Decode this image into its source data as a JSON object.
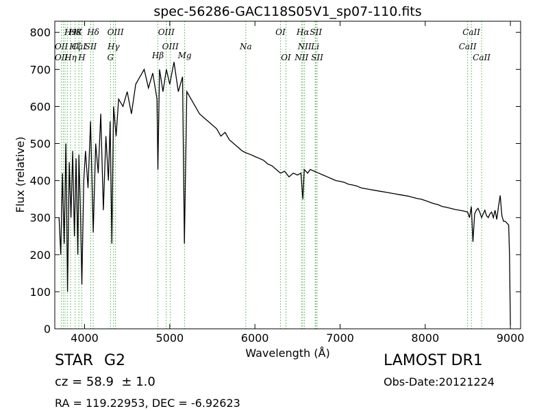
{
  "chart_data": {
    "type": "line",
    "title": "spec-56286-GAC118S05V1_sp07-110.fits",
    "xlabel": "Wavelength (Å)",
    "ylabel": "Flux (relative)",
    "xlim": [
      3650,
      9120
    ],
    "ylim": [
      0,
      830
    ],
    "xticks": [
      4000,
      5000,
      6000,
      7000,
      8000,
      9000
    ],
    "yticks": [
      0,
      100,
      200,
      300,
      400,
      500,
      600,
      700,
      800
    ],
    "xtick_labels": [
      "4000",
      "5000",
      "6000",
      "7000",
      "8000",
      "9000"
    ],
    "ytick_labels": [
      "0",
      "100",
      "200",
      "300",
      "400",
      "500",
      "600",
      "700",
      "800"
    ],
    "grid": false,
    "series": [
      {
        "color": "#000000",
        "x": [
          3700,
          3720,
          3740,
          3760,
          3780,
          3800,
          3820,
          3840,
          3860,
          3880,
          3900,
          3920,
          3933,
          3950,
          3968,
          3990,
          4010,
          4040,
          4070,
          4101,
          4130,
          4160,
          4190,
          4220,
          4250,
          4280,
          4300,
          4320,
          4340,
          4370,
          4400,
          4450,
          4500,
          4550,
          4600,
          4650,
          4700,
          4750,
          4800,
          4850,
          4861,
          4880,
          4920,
          4960,
          5000,
          5050,
          5100,
          5150,
          5172,
          5200,
          5250,
          5300,
          5350,
          5400,
          5450,
          5500,
          5550,
          5600,
          5650,
          5700,
          5750,
          5800,
          5850,
          5893,
          5950,
          6000,
          6050,
          6100,
          6150,
          6200,
          6250,
          6300,
          6350,
          6400,
          6450,
          6500,
          6540,
          6563,
          6580,
          6620,
          6650,
          6700,
          6750,
          6800,
          6850,
          6900,
          6950,
          7000,
          7050,
          7100,
          7150,
          7200,
          7250,
          7300,
          7350,
          7400,
          7450,
          7500,
          7550,
          7600,
          7650,
          7700,
          7750,
          7800,
          7850,
          7900,
          7950,
          8000,
          8050,
          8100,
          8150,
          8200,
          8250,
          8300,
          8350,
          8400,
          8450,
          8498,
          8520,
          8542,
          8560,
          8580,
          8600,
          8620,
          8640,
          8662,
          8680,
          8700,
          8720,
          8740,
          8760,
          8780,
          8800,
          8820,
          8840,
          8860,
          8880,
          8900,
          8920,
          8940,
          8960,
          8980,
          8990,
          9000
        ],
        "values": [
          300,
          200,
          420,
          230,
          500,
          100,
          450,
          300,
          480,
          250,
          460,
          200,
          470,
          330,
          120,
          400,
          480,
          380,
          560,
          260,
          500,
          420,
          580,
          320,
          520,
          400,
          560,
          230,
          600,
          520,
          620,
          600,
          640,
          580,
          660,
          680,
          700,
          650,
          690,
          620,
          430,
          700,
          640,
          700,
          660,
          720,
          640,
          680,
          230,
          640,
          620,
          600,
          580,
          570,
          560,
          550,
          540,
          520,
          530,
          510,
          500,
          490,
          480,
          475,
          470,
          465,
          460,
          455,
          445,
          440,
          430,
          420,
          425,
          410,
          420,
          415,
          420,
          350,
          430,
          420,
          430,
          425,
          420,
          415,
          410,
          405,
          400,
          398,
          395,
          390,
          388,
          385,
          380,
          378,
          376,
          374,
          372,
          370,
          368,
          366,
          364,
          362,
          360,
          358,
          355,
          352,
          350,
          346,
          342,
          338,
          335,
          330,
          328,
          325,
          322,
          320,
          318,
          315,
          300,
          330,
          235,
          310,
          320,
          325,
          315,
          300,
          310,
          320,
          305,
          300,
          310,
          315,
          300,
          320,
          295,
          330,
          360,
          305,
          290,
          290,
          285,
          280,
          200,
          10
        ]
      }
    ],
    "annotations": [
      {
        "label": "H9",
        "x": 3835,
        "y_label": 800
      },
      {
        "label": "H8",
        "x": 3889,
        "y_label": 800
      },
      {
        "label": "K",
        "x": 3933,
        "y_label": 800
      },
      {
        "label": "Hδ",
        "x": 4101,
        "y_label": 800
      },
      {
        "label": "OIII",
        "x": 4363,
        "y_label": 800
      },
      {
        "label": "OIII",
        "x": 4959,
        "y_label": 800
      },
      {
        "label": "OI",
        "x": 6300,
        "y_label": 800
      },
      {
        "label": "Hα",
        "x": 6563,
        "y_label": 800
      },
      {
        "label": "SII",
        "x": 6716,
        "y_label": 800
      },
      {
        "label": "CaII",
        "x": 8542,
        "y_label": 800
      },
      {
        "label": "OII",
        "x": 3727,
        "y_label": 762
      },
      {
        "label": "Hζ",
        "x": 3889,
        "y_label": 762
      },
      {
        "label": "CaI",
        "x": 3934,
        "y_label": 762
      },
      {
        "label": "SII",
        "x": 4072,
        "y_label": 762
      },
      {
        "label": "Hγ",
        "x": 4340,
        "y_label": 762
      },
      {
        "label": "OIII",
        "x": 5007,
        "y_label": 762
      },
      {
        "label": "NII",
        "x": 6583,
        "y_label": 762
      },
      {
        "label": "Li",
        "x": 6708,
        "y_label": 762
      },
      {
        "label": "CaII",
        "x": 8498,
        "y_label": 762
      },
      {
        "label": "Na",
        "x": 5893,
        "y_label": 762
      },
      {
        "label": "OII",
        "x": 3727,
        "y_label": 732
      },
      {
        "label": "Hη",
        "x": 3835,
        "y_label": 732
      },
      {
        "label": "H",
        "x": 3968,
        "y_label": 732
      },
      {
        "label": "G",
        "x": 4304,
        "y_label": 732
      },
      {
        "label": "Hβ",
        "x": 4861,
        "y_label": 738
      },
      {
        "label": "Mg",
        "x": 5175,
        "y_label": 738
      },
      {
        "label": "OI",
        "x": 6364,
        "y_label": 732
      },
      {
        "label": "NII",
        "x": 6548,
        "y_label": 732
      },
      {
        "label": "SII",
        "x": 6731,
        "y_label": 732
      },
      {
        "label": "CaII",
        "x": 8662,
        "y_label": 732
      }
    ],
    "line_markers": [
      3727,
      3750,
      3770,
      3797,
      3835,
      3889,
      3933,
      3968,
      4072,
      4101,
      4304,
      4340,
      4363,
      4861,
      4959,
      5007,
      5175,
      5893,
      6300,
      6364,
      6548,
      6563,
      6583,
      6708,
      6716,
      6731,
      8498,
      8542,
      8662
    ],
    "marker_color": "#44aa44"
  },
  "info": {
    "object_class": "STAR",
    "subclass": "G2",
    "redshift": "cz = 58.9  ± 1.0",
    "coords": "RA = 119.22953, DEC = -6.92623",
    "survey": "LAMOST DR1",
    "obs_date": "Obs-Date:20121224"
  }
}
